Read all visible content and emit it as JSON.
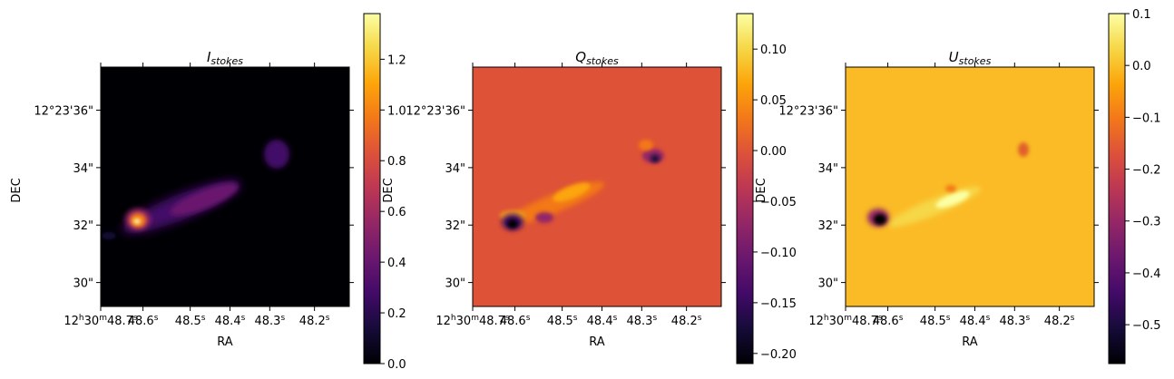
{
  "chart_data": [
    {
      "type": "heatmap",
      "title_main": "I",
      "title_sub": "stokes",
      "xlabel": "RA",
      "ylabel": "DEC",
      "xticks": [
        "12h30m48.7s",
        "48.6s",
        "48.5s",
        "48.4s",
        "48.3s",
        "48.2s"
      ],
      "yticks": [
        "12°23'36\"",
        "34\"",
        "32\"",
        "30\""
      ],
      "colormap": "inferno",
      "background_value": 0.0,
      "clim": [
        0.0,
        1.38
      ],
      "colorbar_ticks": [
        0.0,
        0.2,
        0.4,
        0.6,
        0.8,
        1.0,
        1.2
      ]
    },
    {
      "type": "heatmap",
      "title_main": "Q",
      "title_sub": "stokes",
      "xlabel": "RA",
      "ylabel": "DEC",
      "xticks": [
        "12h30m48.7s",
        "48.6s",
        "48.5s",
        "48.4s",
        "48.3s",
        "48.2s"
      ],
      "yticks": [
        "12°23'36\"",
        "34\"",
        "32\"",
        "30\""
      ],
      "colormap": "inferno",
      "background_value": 0.0,
      "clim": [
        -0.21,
        0.135
      ],
      "colorbar_ticks": [
        -0.2,
        -0.15,
        -0.1,
        -0.05,
        0.0,
        0.05,
        0.1
      ],
      "colorbar_tick_labels": [
        "−0.20",
        "−0.15",
        "−0.10",
        "−0.05",
        "0.00",
        "0.05",
        "0.10"
      ]
    },
    {
      "type": "heatmap",
      "title_main": "U",
      "title_sub": "stokes",
      "xlabel": "RA",
      "ylabel": "DEC",
      "xticks": [
        "12h30m48.7s",
        "48.6s",
        "48.5s",
        "48.4s",
        "48.3s",
        "48.2s"
      ],
      "yticks": [
        "12°23'36\"",
        "34\"",
        "32\"",
        "30\""
      ],
      "colormap": "inferno",
      "background_value": 0.0,
      "clim": [
        -0.575,
        0.1
      ],
      "colorbar_ticks": [
        -0.5,
        -0.4,
        -0.3,
        -0.2,
        -0.1,
        0.0,
        0.1
      ],
      "colorbar_tick_labels": [
        "−0.5",
        "−0.4",
        "−0.3",
        "−0.2",
        "−0.1",
        "0.0",
        "0.1"
      ]
    }
  ]
}
